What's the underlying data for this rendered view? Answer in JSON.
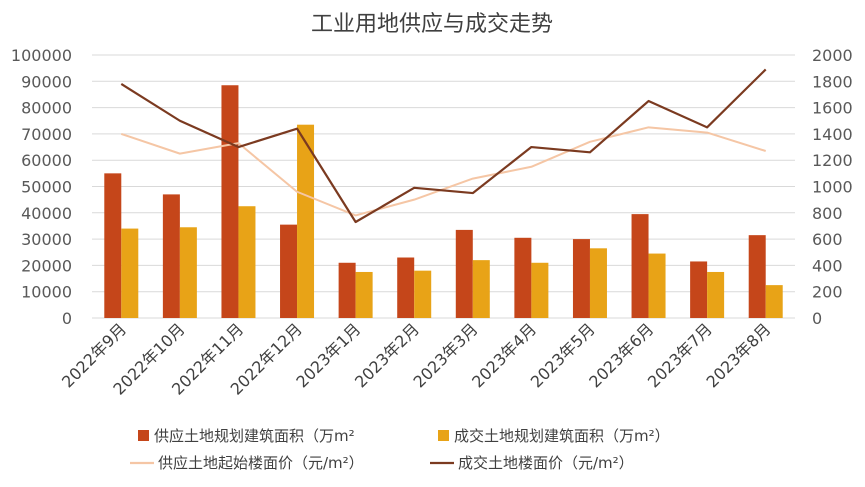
{
  "chart_data": {
    "type": "bar",
    "title": "工业用地供应与成交走势",
    "categories": [
      "2022年9月",
      "2022年10月",
      "2022年11月",
      "2022年12月",
      "2023年1月",
      "2023年2月",
      "2023年3月",
      "2023年4月",
      "2023年5月",
      "2023年6月",
      "2023年7月",
      "2023年8月"
    ],
    "y_left": {
      "min": 0,
      "max": 100000,
      "ticks": [
        "0",
        "10000",
        "20000",
        "30000",
        "40000",
        "50000",
        "60000",
        "70000",
        "80000",
        "90000",
        "100000"
      ]
    },
    "y_right": {
      "min": 0,
      "max": 2000,
      "ticks": [
        "0",
        "200",
        "400",
        "600",
        "800",
        "1000",
        "1200",
        "1400",
        "1600",
        "1800",
        "2000"
      ]
    },
    "grid": true,
    "legend_position": "bottom",
    "series": [
      {
        "name": "供应土地规划建筑面积（万m²",
        "kind": "bar",
        "axis": "left",
        "color": "#C5461A",
        "values": [
          55000,
          47000,
          88500,
          35500,
          21000,
          23000,
          33500,
          30500,
          30000,
          39500,
          21500,
          31500
        ]
      },
      {
        "name": "成交土地规划建筑面积（万m²）",
        "kind": "bar",
        "axis": "left",
        "color": "#E8A317",
        "values": [
          34000,
          34500,
          42500,
          73500,
          17500,
          18000,
          22000,
          21000,
          26500,
          24500,
          17500,
          12500
        ]
      },
      {
        "name": "供应土地起始楼面价（元/m²）",
        "kind": "line",
        "axis": "right",
        "color": "#F5C6A5",
        "values": [
          1400,
          1250,
          1330,
          960,
          780,
          900,
          1060,
          1150,
          1340,
          1450,
          1410,
          1270
        ]
      },
      {
        "name": "成交土地楼面价（元/m²）",
        "kind": "line",
        "axis": "right",
        "color": "#7B3A20",
        "values": [
          1780,
          1500,
          1300,
          1440,
          730,
          990,
          950,
          1300,
          1260,
          1650,
          1450,
          1890
        ]
      }
    ]
  }
}
